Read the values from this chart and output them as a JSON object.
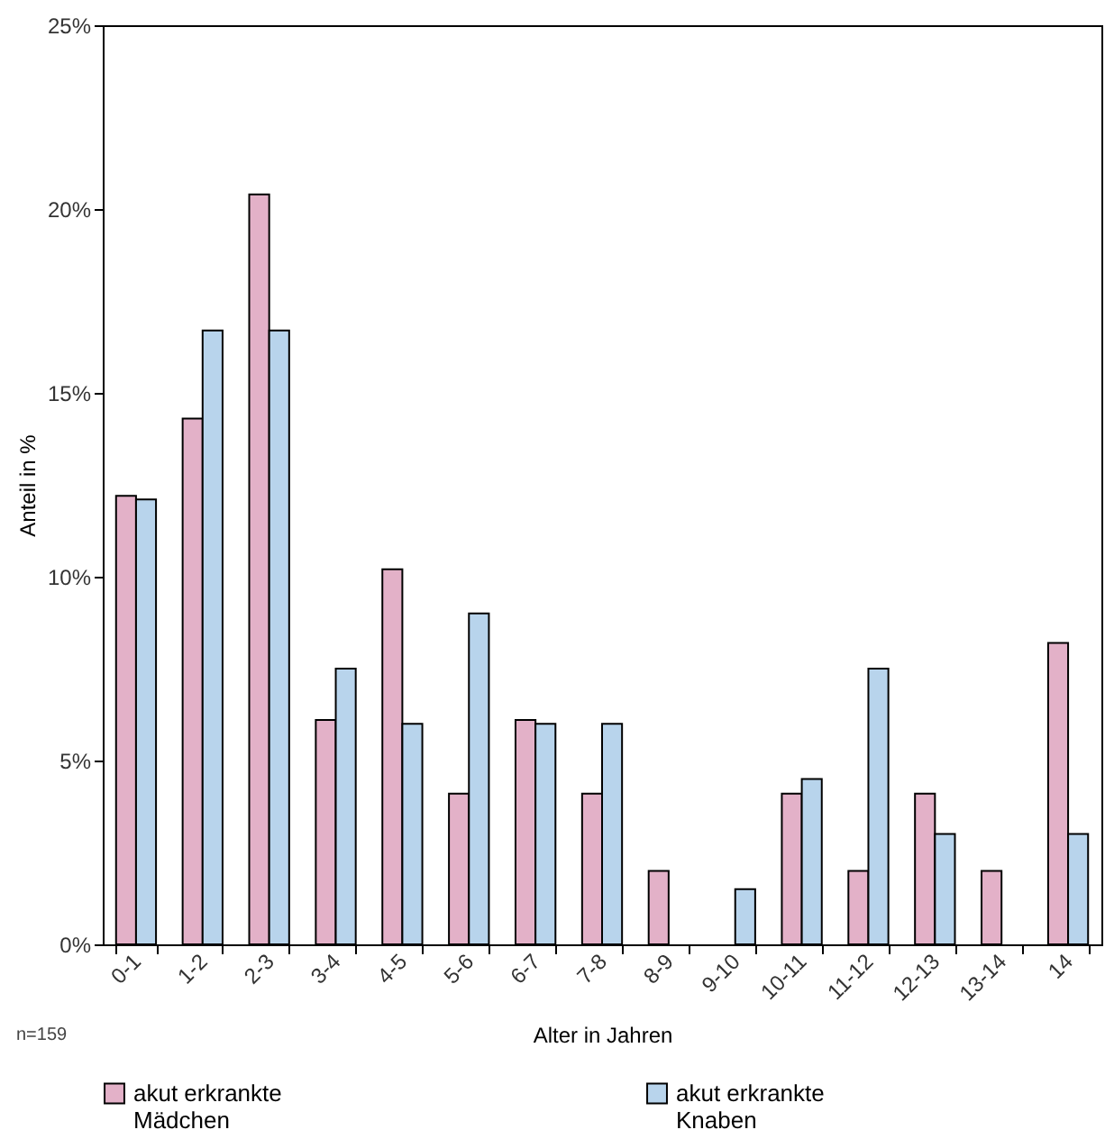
{
  "chart_data": {
    "type": "bar",
    "xlabel": "Alter in Jahren",
    "ylabel": "Anteil in %",
    "categories": [
      "0-1",
      "1-2",
      "2-3",
      "3-4",
      "4-5",
      "5-6",
      "6-7",
      "7-8",
      "8-9",
      "9-10",
      "10-11",
      "11-12",
      "12-13",
      "13-14",
      "14"
    ],
    "series": [
      {
        "name": "akut erkrankte Mädchen",
        "color": "#e3b1c8",
        "values": [
          12.2,
          14.3,
          20.4,
          6.1,
          10.2,
          4.1,
          6.1,
          4.1,
          2.0,
          null,
          4.1,
          2.0,
          4.1,
          2.0,
          8.2
        ]
      },
      {
        "name": "akut erkrankte Knaben",
        "color": "#b8d4ec",
        "values": [
          12.1,
          16.7,
          16.7,
          7.5,
          6.0,
          9.0,
          6.0,
          6.0,
          null,
          1.5,
          4.5,
          7.5,
          3.0,
          null,
          3.0
        ]
      }
    ],
    "ylim": [
      0,
      25
    ],
    "yticks": [
      {
        "value": 0,
        "label": "0%"
      },
      {
        "value": 5,
        "label": "5%"
      },
      {
        "value": 10,
        "label": "10%"
      },
      {
        "value": 15,
        "label": "15%"
      },
      {
        "value": 20,
        "label": "20%"
      },
      {
        "value": 25,
        "label": "25%"
      }
    ],
    "legend": "bottom",
    "grid": false,
    "annotations": [
      "n=159"
    ]
  }
}
